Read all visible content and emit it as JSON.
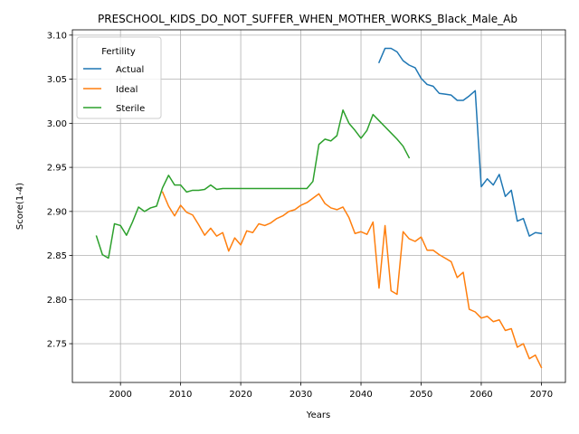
{
  "chart_data": {
    "type": "line",
    "title": "PRESCHOOL_KIDS_DO_NOT_SUFFER_WHEN_MOTHER_WORKS_Black_Male_Ab",
    "xlabel": "Years",
    "ylabel": "Score(1-4)",
    "xlim": [
      1992,
      2074
    ],
    "ylim": [
      2.706,
      3.106
    ],
    "xticks": [
      2000,
      2010,
      2020,
      2030,
      2040,
      2050,
      2060,
      2070
    ],
    "yticks": [
      2.75,
      2.8,
      2.85,
      2.9,
      2.95,
      3.0,
      3.05,
      3.1
    ],
    "ytick_labels": [
      "2.75",
      "2.80",
      "2.85",
      "2.90",
      "2.95",
      "3.00",
      "3.05",
      "3.10"
    ],
    "grid": true,
    "legend": {
      "title": "Fertility",
      "placement": "upper-left"
    },
    "series": [
      {
        "name": "Actual",
        "color": "#1f77b4",
        "x": [
          2043,
          2044,
          2045,
          2046,
          2047,
          2048,
          2049,
          2050,
          2051,
          2052,
          2053,
          2054,
          2055,
          2056,
          2057,
          2058,
          2059,
          2060,
          2061,
          2062,
          2063,
          2064,
          2065,
          2066,
          2067,
          2068,
          2069,
          2070
        ],
        "y": [
          3.069,
          3.085,
          3.085,
          3.081,
          3.071,
          3.066,
          3.063,
          3.051,
          3.044,
          3.042,
          3.034,
          3.033,
          3.032,
          3.026,
          3.026,
          3.031,
          3.037,
          2.928,
          2.937,
          2.93,
          2.942,
          2.917,
          2.924,
          2.889,
          2.892,
          2.872,
          2.876,
          2.875
        ]
      },
      {
        "name": "Ideal",
        "color": "#ff7f0e",
        "x": [
          2007,
          2008,
          2009,
          2010,
          2011,
          2012,
          2013,
          2014,
          2015,
          2016,
          2017,
          2018,
          2019,
          2020,
          2021,
          2022,
          2023,
          2024,
          2025,
          2026,
          2027,
          2028,
          2029,
          2030,
          2031,
          2032,
          2033,
          2034,
          2035,
          2036,
          2037,
          2038,
          2039,
          2040,
          2041,
          2042,
          2043,
          2044,
          2045,
          2046,
          2047,
          2048,
          2049,
          2050,
          2051,
          2052,
          2053,
          2054,
          2055,
          2056,
          2057,
          2058,
          2059,
          2060,
          2061,
          2062,
          2063,
          2064,
          2065,
          2066,
          2067,
          2068,
          2069,
          2070
        ],
        "y": [
          2.922,
          2.906,
          2.895,
          2.907,
          2.899,
          2.896,
          2.885,
          2.873,
          2.881,
          2.872,
          2.876,
          2.855,
          2.87,
          2.862,
          2.878,
          2.876,
          2.886,
          2.884,
          2.887,
          2.892,
          2.895,
          2.9,
          2.902,
          2.907,
          2.91,
          2.915,
          2.92,
          2.909,
          2.904,
          2.902,
          2.905,
          2.893,
          2.875,
          2.877,
          2.874,
          2.888,
          2.813,
          2.884,
          2.81,
          2.806,
          2.877,
          2.869,
          2.866,
          2.871,
          2.856,
          2.856,
          2.851,
          2.847,
          2.843,
          2.825,
          2.831,
          2.789,
          2.786,
          2.779,
          2.781,
          2.775,
          2.777,
          2.765,
          2.767,
          2.746,
          2.75,
          2.733,
          2.737,
          2.723
        ]
      },
      {
        "name": "Sterile",
        "color": "#2ca02c",
        "x": [
          1996,
          1997,
          1998,
          1999,
          2000,
          2001,
          2002,
          2003,
          2004,
          2005,
          2006,
          2007,
          2008,
          2009,
          2010,
          2011,
          2012,
          2013,
          2014,
          2015,
          2016,
          2017,
          2018,
          2019,
          2020,
          2025,
          2030,
          2031,
          2032,
          2033,
          2034,
          2035,
          2036,
          2037,
          2038,
          2039,
          2040,
          2041,
          2042,
          2043,
          2044,
          2045,
          2046,
          2047,
          2048
        ],
        "y": [
          2.872,
          2.851,
          2.847,
          2.886,
          2.884,
          2.873,
          2.888,
          2.905,
          2.9,
          2.904,
          2.906,
          2.927,
          2.941,
          2.93,
          2.93,
          2.922,
          2.924,
          2.924,
          2.925,
          2.93,
          2.925,
          2.926,
          2.926,
          2.926,
          2.926,
          2.926,
          2.926,
          2.926,
          2.934,
          2.976,
          2.982,
          2.98,
          2.986,
          3.015,
          3.0,
          2.992,
          2.983,
          2.992,
          3.01,
          3.003,
          2.996,
          2.989,
          2.982,
          2.974,
          2.961
        ]
      }
    ]
  }
}
